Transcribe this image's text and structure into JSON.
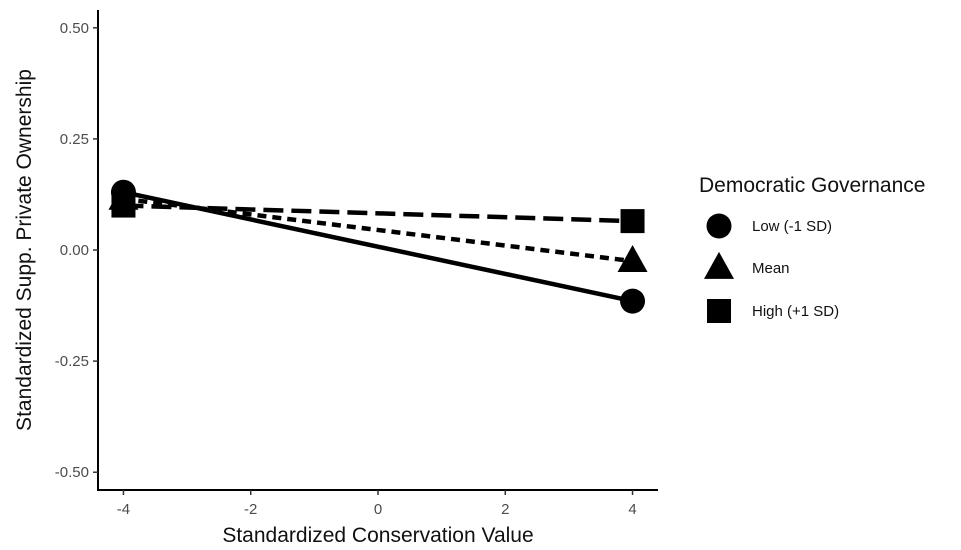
{
  "chart_data": {
    "type": "line",
    "xlabel": "Standardized Conservation Value",
    "ylabel": "Standardized Supp. Private Ownership",
    "xlim": [
      -4.4,
      4.4
    ],
    "ylim": [
      -0.54,
      0.54
    ],
    "x_ticks": [
      -4,
      -2,
      0,
      2,
      4
    ],
    "x_tick_labels": [
      "-4",
      "-2",
      "0",
      "2",
      "4"
    ],
    "y_ticks": [
      0.5,
      0.25,
      0.0,
      -0.25,
      -0.5
    ],
    "y_tick_labels": [
      "0.50",
      "0.25",
      "0.00",
      "-0.25",
      "-0.50"
    ],
    "grid": false,
    "legend": {
      "title": "Democratic Governance",
      "position": "right"
    },
    "series": [
      {
        "name": "Low (-1 SD)",
        "marker": "circle",
        "line_style": "solid",
        "x": [
          -4,
          4
        ],
        "y": [
          0.13,
          -0.115
        ]
      },
      {
        "name": "Mean",
        "marker": "triangle",
        "line_style": "dotted",
        "x": [
          -4,
          4
        ],
        "y": [
          0.115,
          -0.025
        ]
      },
      {
        "name": "High (+1 SD)",
        "marker": "square",
        "line_style": "dashed",
        "x": [
          -4,
          4
        ],
        "y": [
          0.1,
          0.065
        ]
      }
    ],
    "colors": {
      "lines": "#000000",
      "axis": "#000000",
      "tick_text": "#4d4d4d"
    }
  }
}
